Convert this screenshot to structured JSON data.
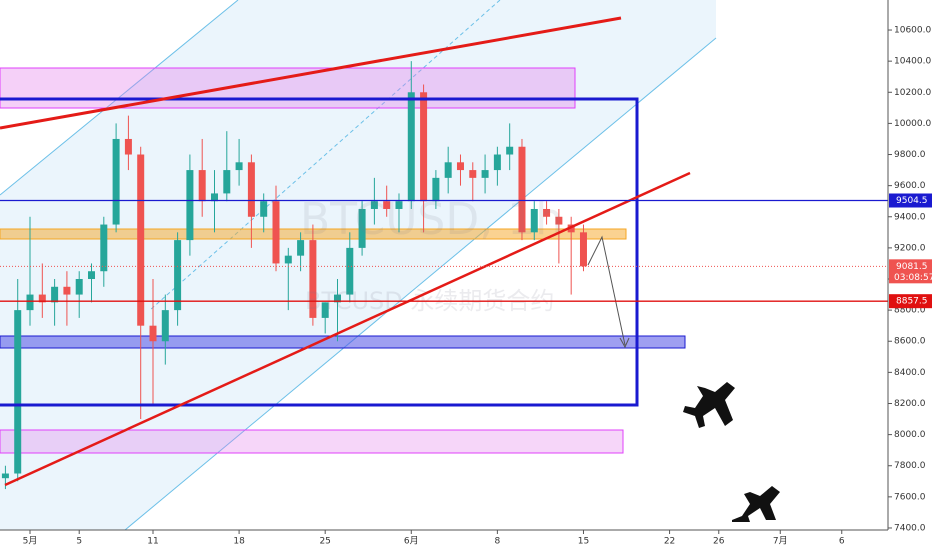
{
  "chart_data": {
    "type": "candlestick",
    "watermark": [
      "BTCUSD, 1h",
      "BTCUSD 永续期货合约"
    ],
    "x": [
      -2,
      -1,
      0,
      1,
      2,
      3,
      4,
      5,
      6,
      7,
      8,
      9,
      10,
      11,
      12,
      13,
      14,
      15,
      16,
      17,
      18,
      19,
      20,
      21,
      22,
      23,
      24,
      25,
      26,
      27,
      28,
      29,
      30,
      31,
      32,
      33,
      34,
      35,
      36,
      37,
      38,
      39,
      40,
      41,
      42,
      43,
      44,
      45
    ],
    "open": [
      7720,
      7750,
      8800,
      8900,
      8850,
      8950,
      8900,
      9000,
      9050,
      9350,
      9900,
      9800,
      8700,
      8600,
      8800,
      9250,
      9700,
      9500,
      9550,
      9700,
      9750,
      9400,
      9500,
      9100,
      9150,
      9250,
      8750,
      8850,
      8900,
      9200,
      9450,
      9500,
      9450,
      9500,
      10200,
      9500,
      9650,
      9750,
      9700,
      9650,
      9700,
      9800,
      9850,
      9300,
      9450,
      9400,
      9350,
      9300
    ],
    "high": [
      7800,
      9000,
      9400,
      9100,
      9000,
      9050,
      9050,
      9100,
      9400,
      10000,
      10050,
      9850,
      9000,
      8900,
      9300,
      9800,
      9900,
      9700,
      9950,
      9900,
      9800,
      9550,
      9600,
      9200,
      9300,
      9350,
      8850,
      9000,
      9300,
      9500,
      9650,
      9600,
      9550,
      10400,
      10250,
      9700,
      9850,
      9800,
      9750,
      9800,
      9850,
      10000,
      9900,
      9500,
      9500,
      9450,
      9400,
      9350
    ],
    "low": [
      7650,
      7700,
      8700,
      8750,
      8700,
      8700,
      8750,
      8850,
      8950,
      9300,
      9700,
      8100,
      8200,
      8450,
      8700,
      9150,
      9400,
      9300,
      9500,
      9600,
      9200,
      9300,
      9050,
      8800,
      9050,
      8700,
      8650,
      8600,
      8850,
      9150,
      9350,
      9400,
      9300,
      9450,
      9300,
      9450,
      9550,
      9600,
      9500,
      9550,
      9600,
      9700,
      9250,
      9250,
      9350,
      9100,
      8900,
      9050
    ],
    "close": [
      7750,
      8800,
      8900,
      8850,
      8950,
      8900,
      9000,
      9050,
      9350,
      9900,
      9800,
      8700,
      8600,
      8800,
      9250,
      9700,
      9500,
      9550,
      9700,
      9750,
      9400,
      9500,
      9100,
      9150,
      9250,
      8750,
      8850,
      8900,
      9200,
      9450,
      9500,
      9450,
      9500,
      10200,
      9500,
      9650,
      9750,
      9700,
      9650,
      9700,
      9800,
      9850,
      9300,
      9450,
      9400,
      9350,
      9300,
      9081.5
    ],
    "up_color": "#26a69a",
    "down_color": "#ef5350",
    "xlim": [
      -2.44,
      69.76
    ],
    "xticks": [
      {
        "value": 0,
        "label": "5月"
      },
      {
        "value": 4,
        "label": "5"
      },
      {
        "value": 10,
        "label": "11"
      },
      {
        "value": 17,
        "label": "18"
      },
      {
        "value": 24,
        "label": "25"
      },
      {
        "value": 31,
        "label": "6月"
      },
      {
        "value": 38,
        "label": "8"
      },
      {
        "value": 45,
        "label": "15"
      },
      {
        "value": 52,
        "label": "22"
      },
      {
        "value": 56,
        "label": "26"
      },
      {
        "value": 61,
        "label": "7月"
      },
      {
        "value": 66,
        "label": "6"
      }
    ],
    "ylim": [
      7387,
      10793
    ],
    "yticks": [
      {
        "value": 7400,
        "label": "7400.0"
      },
      {
        "value": 7600,
        "label": "7600.0"
      },
      {
        "value": 7800,
        "label": "7800.0"
      },
      {
        "value": 8000,
        "label": "8000.0"
      },
      {
        "value": 8200,
        "label": "8200.0"
      },
      {
        "value": 8400,
        "label": "8400.0"
      },
      {
        "value": 8600,
        "label": "8600.0"
      },
      {
        "value": 8800,
        "label": "8800.0"
      },
      {
        "value": 9000,
        "label": "9000.0"
      },
      {
        "value": 9200,
        "label": "9200.0"
      },
      {
        "value": 9400,
        "label": "9400.0"
      },
      {
        "value": 9600,
        "label": "9600.0"
      },
      {
        "value": 9800,
        "label": "9800.0"
      },
      {
        "value": 10000,
        "label": "10000.0"
      },
      {
        "value": 10200,
        "label": "10200.0"
      },
      {
        "value": 10400,
        "label": "10400.0"
      },
      {
        "value": 10600,
        "label": "10600.0"
      }
    ],
    "price_lines": [
      {
        "value": 9504.5,
        "color": "#1a1ad0",
        "style": "solid"
      },
      {
        "value": 9081.5,
        "color": "#ef5350",
        "style": "dotted",
        "countdown": "03:08:57"
      },
      {
        "value": 8857.5,
        "color": "#e01010",
        "style": "solid"
      }
    ]
  }
}
